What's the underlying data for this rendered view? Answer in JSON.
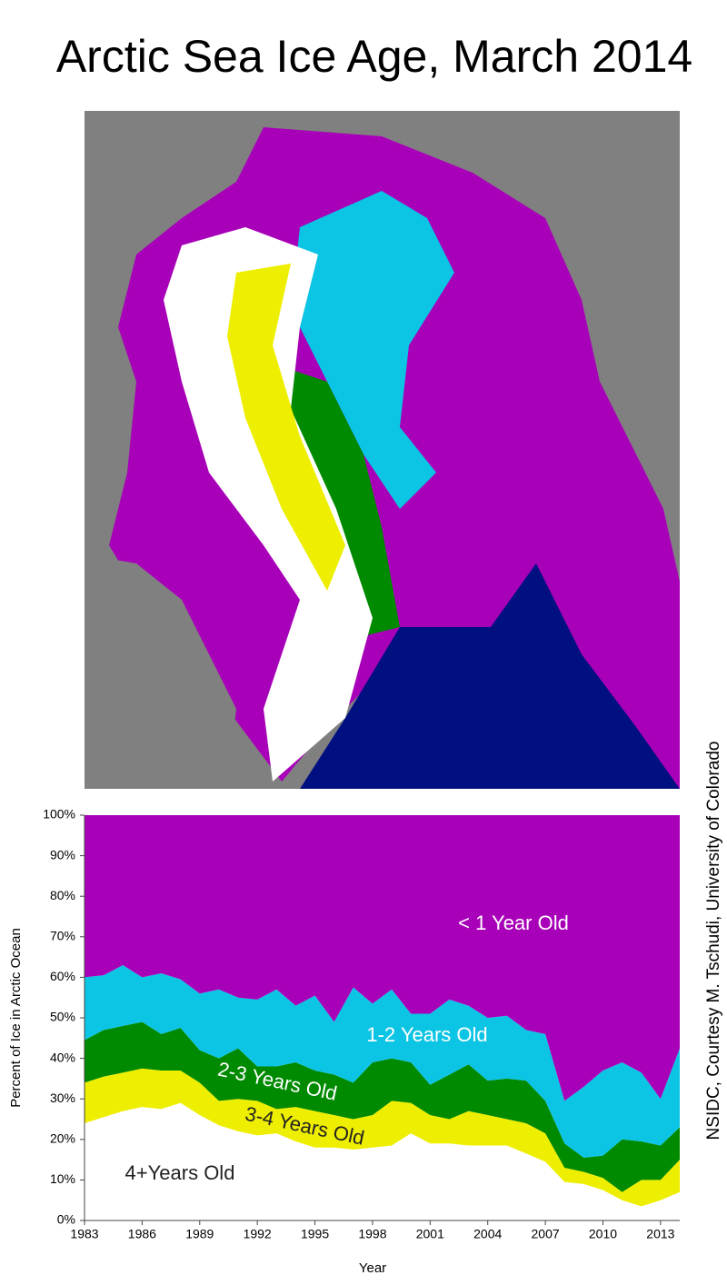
{
  "chart_data": {
    "type": "stacked_area",
    "title": "Arctic Sea Ice Age, March 2014",
    "credit": "NSIDC, Courtesy M. Tschudi, University of Colorado",
    "x_label": "Year",
    "y_label": "Percent of Ice in Arctic Ocean",
    "x": [
      1983,
      1984,
      1985,
      1986,
      1987,
      1988,
      1989,
      1990,
      1991,
      1992,
      1993,
      1994,
      1995,
      1996,
      1997,
      1998,
      1999,
      2000,
      2001,
      2002,
      2003,
      2004,
      2005,
      2006,
      2007,
      2008,
      2009,
      2010,
      2011,
      2012,
      2013,
      2014
    ],
    "xlim": [
      1983,
      2014
    ],
    "xticks": [
      1983,
      1986,
      1989,
      1992,
      1995,
      1998,
      2001,
      2004,
      2007,
      2010,
      2013
    ],
    "ylim": [
      0,
      100
    ],
    "yticks": [
      {
        "value": 0,
        "label": "0%"
      },
      {
        "value": 10,
        "label": "10%"
      },
      {
        "value": 20,
        "label": "20%"
      },
      {
        "value": 30,
        "label": "30%"
      },
      {
        "value": 40,
        "label": "40%"
      },
      {
        "value": 50,
        "label": "50%"
      },
      {
        "value": 60,
        "label": "60%"
      },
      {
        "value": 70,
        "label": "70%"
      },
      {
        "value": 80,
        "label": "80%"
      },
      {
        "value": 90,
        "label": "90%"
      },
      {
        "value": 100,
        "label": "100%"
      }
    ],
    "series": [
      {
        "name": "4+Years Old",
        "color": "#ffffff",
        "values": [
          24,
          25.5,
          27,
          28,
          27.5,
          29,
          26,
          23.5,
          22,
          21,
          21.5,
          19.5,
          18,
          18,
          17.5,
          18,
          18.5,
          21.5,
          19,
          19,
          18.5,
          18.5,
          18.5,
          16.5,
          14.5,
          9.5,
          9,
          7.5,
          5,
          3.5,
          5,
          7
        ]
      },
      {
        "name": "3-4 Years Old",
        "color": "#eeee00",
        "values": [
          10,
          10,
          9.5,
          9.5,
          9.5,
          8,
          8,
          6,
          8,
          8.5,
          6,
          8.5,
          9,
          8,
          7.5,
          8,
          11,
          7.5,
          7,
          6,
          8.5,
          7.5,
          6.5,
          7.5,
          7,
          3.5,
          3,
          3,
          2,
          6.5,
          5,
          8
        ]
      },
      {
        "name": "2-3 Years Old",
        "color": "#008a00",
        "values": [
          10.5,
          11.5,
          11.5,
          11.5,
          9,
          10.5,
          8,
          10.5,
          12.5,
          8.5,
          10.5,
          11,
          10,
          10,
          9,
          13,
          10.5,
          10,
          7.5,
          11,
          11.5,
          8.5,
          10,
          10.5,
          8,
          6,
          3.5,
          5.5,
          13,
          9.5,
          8.5,
          8
        ]
      },
      {
        "name": "1-2 Years Old",
        "color": "#0cc4e4",
        "values": [
          15.5,
          13.5,
          15,
          11,
          15,
          12,
          14,
          17,
          12.5,
          16.5,
          19,
          14,
          18.5,
          13,
          23.5,
          14.5,
          17,
          12,
          17.5,
          18.5,
          14.5,
          15.5,
          15.5,
          12.5,
          16.5,
          10.5,
          17.5,
          21,
          19,
          17,
          11.5,
          19.5
        ]
      },
      {
        "name": "< 1 Year Old",
        "color": "#a800b8",
        "values": [
          40,
          39.5,
          37,
          40,
          39,
          40.5,
          44,
          43,
          45,
          45.5,
          43,
          47,
          44.5,
          51,
          42.5,
          46.5,
          43,
          49,
          49,
          45.5,
          47,
          50,
          49.5,
          53,
          54,
          70.5,
          67,
          63,
          61,
          63.5,
          70,
          57.5
        ]
      }
    ]
  }
}
